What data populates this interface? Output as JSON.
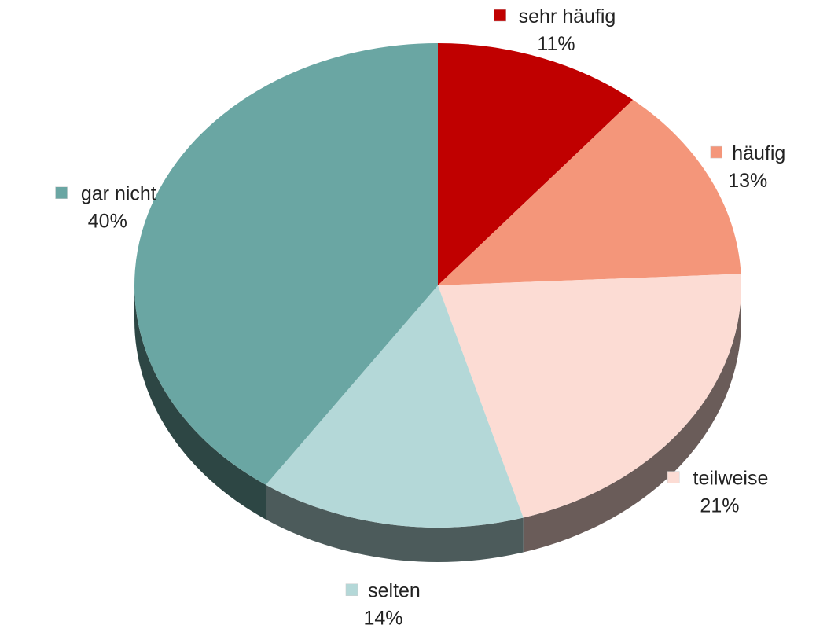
{
  "chart_data": {
    "type": "pie",
    "title": "",
    "style": "3d-tilted",
    "start_angle_deg": 0,
    "direction": "clockwise",
    "slices": [
      {
        "name": "sehr häufig",
        "value": 11,
        "value_label": "11%",
        "color": "#c00000"
      },
      {
        "name": "häufig",
        "value": 13,
        "value_label": "13%",
        "color": "#f4967a"
      },
      {
        "name": "teilweise",
        "value": 21,
        "value_label": "21%",
        "color": "#fcdcd4"
      },
      {
        "name": "selten",
        "value": 14,
        "value_label": "14%",
        "color": "#b4d8d8"
      },
      {
        "name": "gar nicht",
        "value": 40,
        "value_label": "40%",
        "color": "#6aa6a3"
      }
    ],
    "legend": "labels-beside-slices"
  }
}
